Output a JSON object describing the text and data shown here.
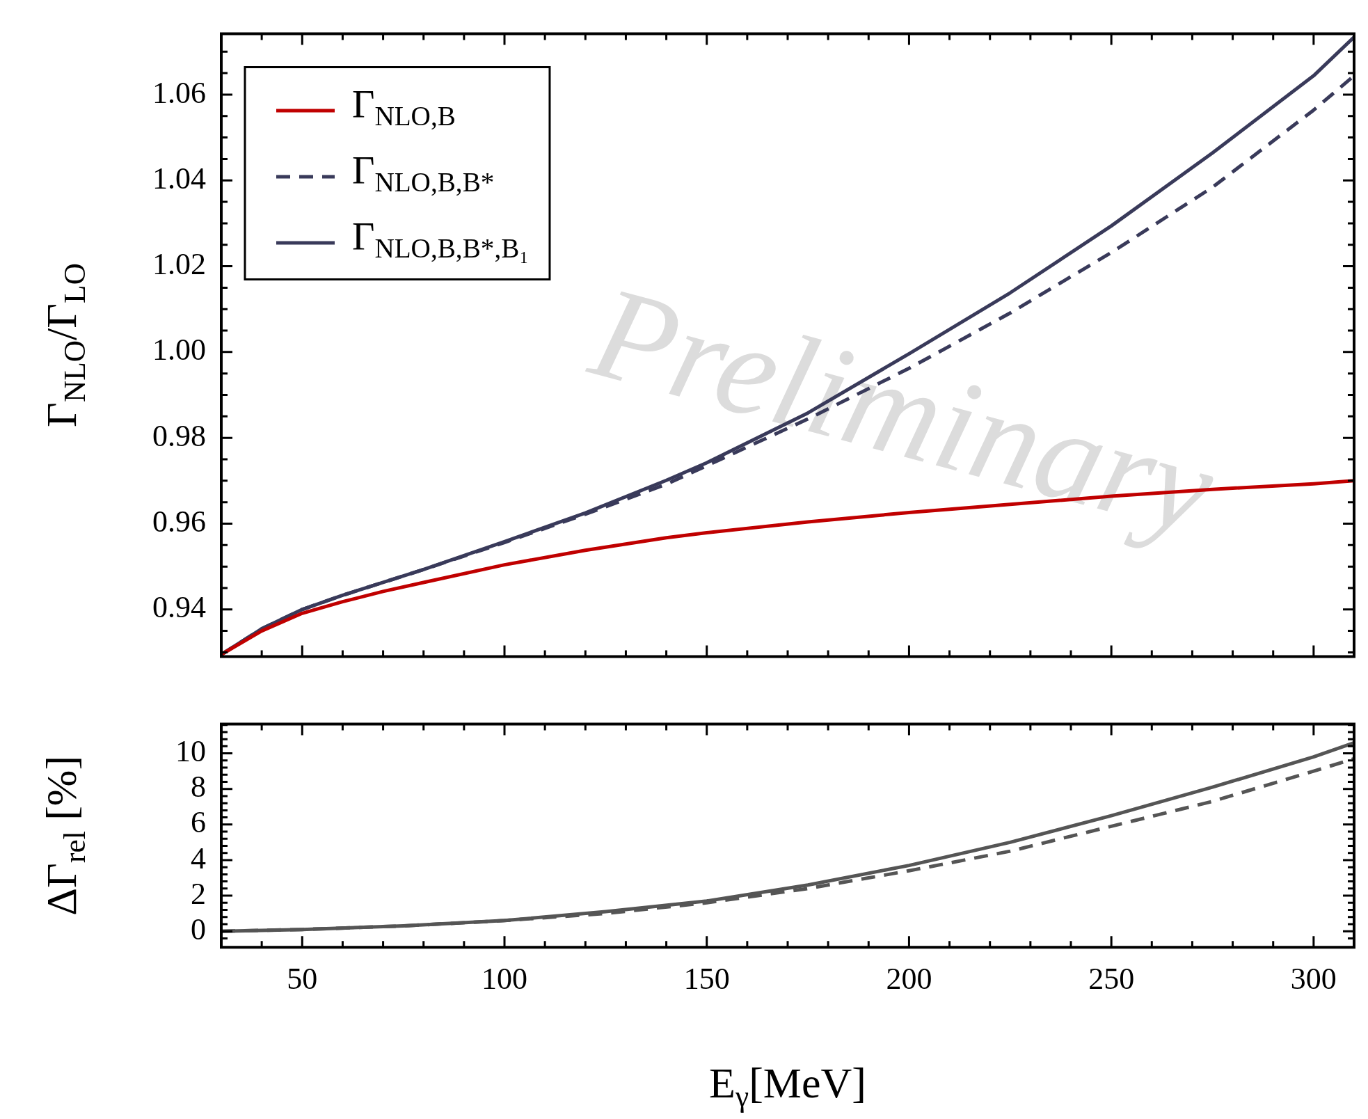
{
  "chart_data": [
    {
      "type": "line",
      "ylabel": "Γ$_{NLO}$/Γ$_{LO}$",
      "legend": "top left",
      "tick_labels": "y",
      "annotations": [
        "Preliminary"
      ],
      "xlim": [
        30,
        310
      ],
      "ylim": [
        0.929,
        1.0742
      ],
      "xticks": [
        {
          "value": 40,
          "label": null
        },
        50,
        {
          "value": 60,
          "label": null
        },
        {
          "value": 70,
          "label": null
        },
        {
          "value": 80,
          "label": null
        },
        {
          "value": 90,
          "label": null
        },
        100,
        {
          "value": 110,
          "label": null
        },
        {
          "value": 120,
          "label": null
        },
        {
          "value": 130,
          "label": null
        },
        {
          "value": 140,
          "label": null
        },
        150,
        {
          "value": 160,
          "label": null
        },
        {
          "value": 170,
          "label": null
        },
        {
          "value": 180,
          "label": null
        },
        {
          "value": 190,
          "label": null
        },
        200,
        {
          "value": 210,
          "label": null
        },
        {
          "value": 220,
          "label": null
        },
        {
          "value": 230,
          "label": null
        },
        {
          "value": 240,
          "label": null
        },
        250,
        {
          "value": 260,
          "label": null
        },
        {
          "value": 270,
          "label": null
        },
        {
          "value": 280,
          "label": null
        },
        {
          "value": 290,
          "label": null
        },
        300
      ],
      "yticks": [
        {
          "value": 0.93,
          "label": null
        },
        {
          "value": 0.935,
          "label": null
        },
        0.94,
        {
          "value": 0.945,
          "label": null
        },
        {
          "value": 0.95,
          "label": null
        },
        {
          "value": 0.955,
          "label": null
        },
        0.96,
        {
          "value": 0.965,
          "label": null
        },
        {
          "value": 0.97,
          "label": null
        },
        {
          "value": 0.975,
          "label": null
        },
        0.98,
        {
          "value": 0.985,
          "label": null
        },
        {
          "value": 0.99,
          "label": null
        },
        {
          "value": 0.995,
          "label": null
        },
        {
          "value": 1,
          "label": "1.00"
        },
        {
          "value": 1.005,
          "label": null
        },
        {
          "value": 1.01,
          "label": null
        },
        {
          "value": 1.015,
          "label": null
        },
        1.02,
        {
          "value": 1.025,
          "label": null
        },
        {
          "value": 1.03,
          "label": null
        },
        {
          "value": 1.035,
          "label": null
        },
        1.04,
        {
          "value": 1.045,
          "label": null
        },
        {
          "value": 1.05,
          "label": null
        },
        {
          "value": 1.055,
          "label": null
        },
        1.06,
        {
          "value": 1.065,
          "label": null
        },
        {
          "value": 1.07,
          "label": null
        }
      ],
      "series": [
        {
          "name": "Γ$_{NLO,B}$",
          "color": "#c00000",
          "line_style": "solid",
          "x": [
            30,
            40,
            50,
            60,
            70,
            80,
            100,
            120,
            140,
            150,
            175,
            200,
            225,
            250,
            275,
            300,
            310
          ],
          "values": [
            0.9295,
            0.935,
            0.9391,
            0.9418,
            0.9442,
            0.9463,
            0.9504,
            0.9538,
            0.9567,
            0.9579,
            0.9604,
            0.9626,
            0.9645,
            0.9664,
            0.968,
            0.9693,
            0.97
          ]
        },
        {
          "name": "Γ$_{NLO,B,B*}$",
          "color": "#393a5a",
          "line_style": "dashed",
          "x": [
            30,
            40,
            50,
            60,
            70,
            80,
            100,
            120,
            140,
            150,
            175,
            200,
            225,
            250,
            275,
            300,
            310
          ],
          "values": [
            0.9295,
            0.9355,
            0.94,
            0.9433,
            0.9463,
            0.9493,
            0.9556,
            0.9622,
            0.9692,
            0.9735,
            0.9844,
            0.9962,
            1.0091,
            1.0232,
            1.0384,
            1.0564,
            1.0644
          ]
        },
        {
          "name": "Γ$_{NLO,B,B*,B₁}$",
          "color": "#393a5a",
          "line_style": "solid",
          "x": [
            30,
            40,
            50,
            60,
            70,
            80,
            100,
            120,
            140,
            150,
            175,
            200,
            225,
            250,
            275,
            300,
            310
          ],
          "values": [
            0.9295,
            0.9355,
            0.94,
            0.9433,
            0.9463,
            0.9493,
            0.9558,
            0.9625,
            0.9701,
            0.9742,
            0.9858,
            0.9996,
            1.0138,
            1.0294,
            1.0464,
            1.0644,
            1.0734
          ]
        }
      ]
    },
    {
      "type": "line",
      "xlabel": "E$_{γ}$[MeV]",
      "ylabel": "ΔΓ$_{rel}$ [%]",
      "xlim": [
        30,
        310
      ],
      "ylim": [
        -0.9,
        11.65
      ],
      "xticks": [
        {
          "value": 40,
          "label": null
        },
        50,
        {
          "value": 60,
          "label": null
        },
        {
          "value": 70,
          "label": null
        },
        {
          "value": 80,
          "label": null
        },
        {
          "value": 90,
          "label": null
        },
        100,
        {
          "value": 110,
          "label": null
        },
        {
          "value": 120,
          "label": null
        },
        {
          "value": 130,
          "label": null
        },
        {
          "value": 140,
          "label": null
        },
        150,
        {
          "value": 160,
          "label": null
        },
        {
          "value": 170,
          "label": null
        },
        {
          "value": 180,
          "label": null
        },
        {
          "value": 190,
          "label": null
        },
        200,
        {
          "value": 210,
          "label": null
        },
        {
          "value": 220,
          "label": null
        },
        {
          "value": 230,
          "label": null
        },
        {
          "value": 240,
          "label": null
        },
        250,
        {
          "value": 260,
          "label": null
        },
        {
          "value": 270,
          "label": null
        },
        {
          "value": 280,
          "label": null
        },
        {
          "value": 290,
          "label": null
        },
        300
      ],
      "yticks": [
        {
          "value": -0.4,
          "label": null
        },
        0,
        {
          "value": 0.4,
          "label": null
        },
        {
          "value": 0.8,
          "label": null
        },
        {
          "value": 1.2,
          "label": null
        },
        {
          "value": 1.6,
          "label": null
        },
        2,
        {
          "value": 2.4,
          "label": null
        },
        {
          "value": 2.8,
          "label": null
        },
        {
          "value": 3.2,
          "label": null
        },
        {
          "value": 3.6,
          "label": null
        },
        4,
        {
          "value": 4.4,
          "label": null
        },
        {
          "value": 4.8,
          "label": null
        },
        {
          "value": 5.2,
          "label": null
        },
        {
          "value": 5.6,
          "label": null
        },
        6,
        {
          "value": 6.4,
          "label": null
        },
        {
          "value": 6.8,
          "label": null
        },
        {
          "value": 7.2,
          "label": null
        },
        {
          "value": 7.6,
          "label": null
        },
        8,
        {
          "value": 8.4,
          "label": null
        },
        {
          "value": 8.8,
          "label": null
        },
        {
          "value": 9.2,
          "label": null
        },
        {
          "value": 9.6,
          "label": null
        },
        10,
        {
          "value": 10.4,
          "label": null
        },
        {
          "value": 10.8,
          "label": null
        },
        {
          "value": 11.2,
          "label": null
        },
        {
          "value": 11.6,
          "label": null
        }
      ],
      "series": [
        {
          "color": "#555555",
          "line_style": "dashed",
          "x": [
            30,
            50,
            75,
            100,
            125,
            150,
            175,
            200,
            225,
            250,
            275,
            300,
            310
          ],
          "values": [
            0,
            0.1,
            0.3,
            0.6,
            1.0,
            1.6,
            2.4,
            3.4,
            4.5,
            5.9,
            7.3,
            9.0,
            9.7
          ]
        },
        {
          "color": "#555555",
          "line_style": "solid",
          "x": [
            30,
            50,
            75,
            100,
            125,
            150,
            175,
            200,
            225,
            250,
            275,
            300,
            310
          ],
          "values": [
            0,
            0.1,
            0.3,
            0.6,
            1.1,
            1.7,
            2.6,
            3.7,
            5.0,
            6.5,
            8.1,
            9.8,
            10.6
          ]
        }
      ]
    }
  ]
}
